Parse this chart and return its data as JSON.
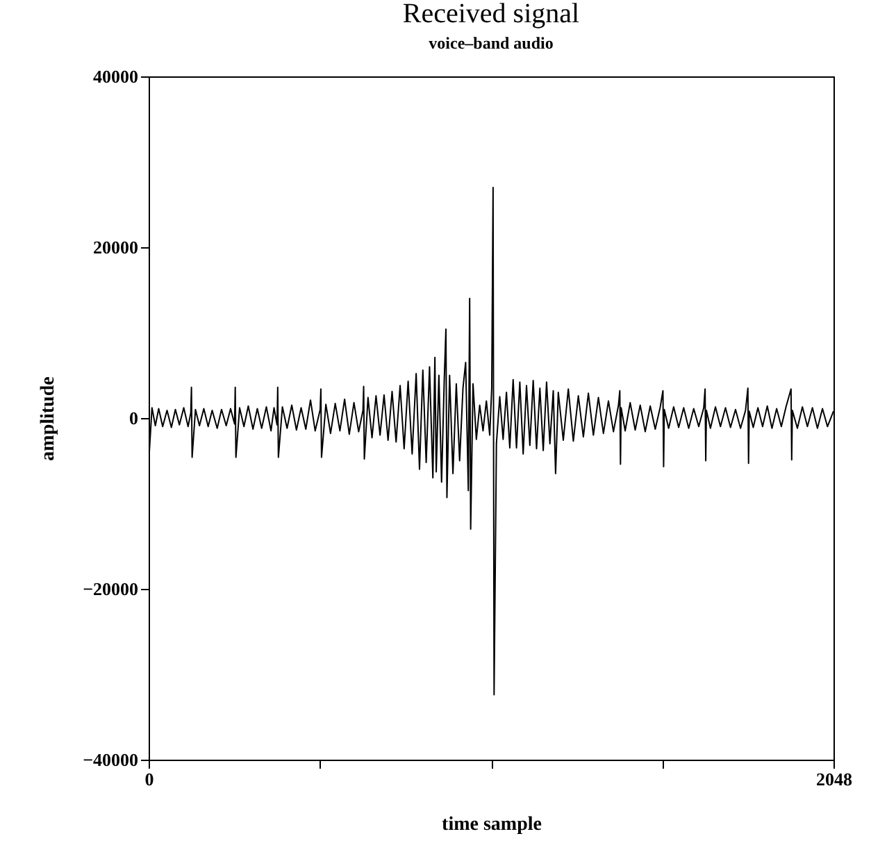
{
  "chart_data": {
    "type": "line",
    "title": "Received signal",
    "subtitle": "voice–band audio",
    "xlabel": "time sample",
    "ylabel": "amplitude",
    "xlim": [
      0,
      2048
    ],
    "xticks": [
      0,
      {
        "value": 512,
        "label": null
      },
      {
        "value": 1024,
        "label": null
      },
      {
        "value": 1536,
        "label": null
      },
      2048
    ],
    "ylim": [
      -40000,
      40000
    ],
    "yticks": [
      {
        "value": -40000,
        "label": "−40000"
      },
      {
        "value": -20000,
        "label": "−20000"
      },
      0,
      20000,
      40000
    ],
    "grid": false,
    "legend": false,
    "series": [
      {
        "color": "#000000",
        "x": [
          0,
          2,
          10,
          20,
          30,
          42,
          55,
          68,
          80,
          92,
          105,
          118,
          126,
          128,
          130,
          140,
          152,
          165,
          178,
          190,
          205,
          218,
          232,
          245,
          257,
          259,
          261,
          272,
          285,
          298,
          312,
          325,
          338,
          352,
          366,
          375,
          384,
          386,
          388,
          400,
          414,
          428,
          442,
          456,
          470,
          484,
          498,
          513,
          515,
          517,
          530,
          544,
          558,
          572,
          586,
          600,
          614,
          628,
          641,
          643,
          645,
          656,
          668,
          680,
          692,
          704,
          716,
          728,
          740,
          752,
          764,
          776,
          788,
          800,
          810,
          820,
          830,
          840,
          850,
          856,
          860,
          868,
          876,
          884,
          889,
          892,
          900,
          910,
          920,
          930,
          940,
          948,
          956,
          960,
          963,
          970,
          980,
          990,
          1000,
          1010,
          1020,
          1026,
          1030,
          1033,
          1040,
          1050,
          1060,
          1070,
          1080,
          1090,
          1100,
          1110,
          1120,
          1130,
          1140,
          1150,
          1160,
          1170,
          1180,
          1190,
          1200,
          1210,
          1217,
          1225,
          1240,
          1255,
          1270,
          1285,
          1300,
          1315,
          1330,
          1345,
          1360,
          1375,
          1390,
          1405,
          1409,
          1411,
          1413,
          1425,
          1440,
          1455,
          1470,
          1485,
          1500,
          1515,
          1530,
          1538,
          1540,
          1542,
          1555,
          1570,
          1585,
          1600,
          1615,
          1630,
          1645,
          1660,
          1664,
          1666,
          1668,
          1680,
          1695,
          1710,
          1725,
          1740,
          1755,
          1770,
          1785,
          1792,
          1794,
          1796,
          1808,
          1822,
          1836,
          1850,
          1864,
          1878,
          1892,
          1906,
          1921,
          1923,
          1925,
          1940,
          1955,
          1970,
          1985,
          2000,
          2015,
          2030,
          2048
        ],
        "values": [
          2500,
          -4000,
          1200,
          -900,
          1100,
          -1000,
          900,
          -1100,
          1000,
          -800,
          1200,
          -1000,
          600,
          3600,
          -4600,
          1000,
          -900,
          1100,
          -1000,
          900,
          -1200,
          1000,
          -900,
          1100,
          -700,
          3600,
          -4600,
          1200,
          -1000,
          1400,
          -1300,
          1100,
          -1200,
          1300,
          -1500,
          1200,
          -800,
          3600,
          -4600,
          1300,
          -1200,
          1500,
          -1400,
          1200,
          -1300,
          2100,
          -1500,
          1000,
          3400,
          -4600,
          1600,
          -1800,
          1700,
          -1500,
          2200,
          -1900,
          1800,
          -1600,
          900,
          3700,
          -4800,
          2400,
          -2300,
          2600,
          -2000,
          2700,
          -2600,
          3100,
          -2800,
          3800,
          -3600,
          4300,
          -4200,
          5200,
          -6000,
          5600,
          -5200,
          6000,
          -7000,
          7100,
          -6300,
          5000,
          -7500,
          4500,
          10400,
          -9300,
          5000,
          -6500,
          4000,
          -5000,
          3500,
          6500,
          -8500,
          14000,
          -13000,
          4000,
          -2500,
          1500,
          -1500,
          2000,
          -2000,
          3500,
          27000,
          -32400,
          -3000,
          2500,
          -2500,
          3000,
          -3500,
          4500,
          -3500,
          4200,
          -4200,
          3800,
          -3200,
          4400,
          -3600,
          3500,
          -3800,
          4200,
          -3000,
          3200,
          -6500,
          3000,
          -2600,
          3400,
          -2700,
          2600,
          -2200,
          2900,
          -2000,
          2400,
          -1800,
          2000,
          -1600,
          1500,
          3200,
          -5400,
          1200,
          -1500,
          1800,
          -1400,
          1500,
          -1600,
          1400,
          -1300,
          1300,
          3200,
          -5700,
          1000,
          -1200,
          1300,
          -1100,
          1200,
          -1200,
          1100,
          -1000,
          1200,
          3400,
          -5000,
          900,
          -1200,
          1300,
          -1000,
          1200,
          -1100,
          1000,
          -1200,
          900,
          3500,
          -5300,
          800,
          -1100,
          1200,
          -1000,
          1400,
          -1200,
          1100,
          -1000,
          1300,
          3400,
          -4900,
          900,
          -1200,
          1300,
          -1000,
          1200,
          -1200,
          1100,
          -1000,
          800
        ]
      }
    ]
  }
}
